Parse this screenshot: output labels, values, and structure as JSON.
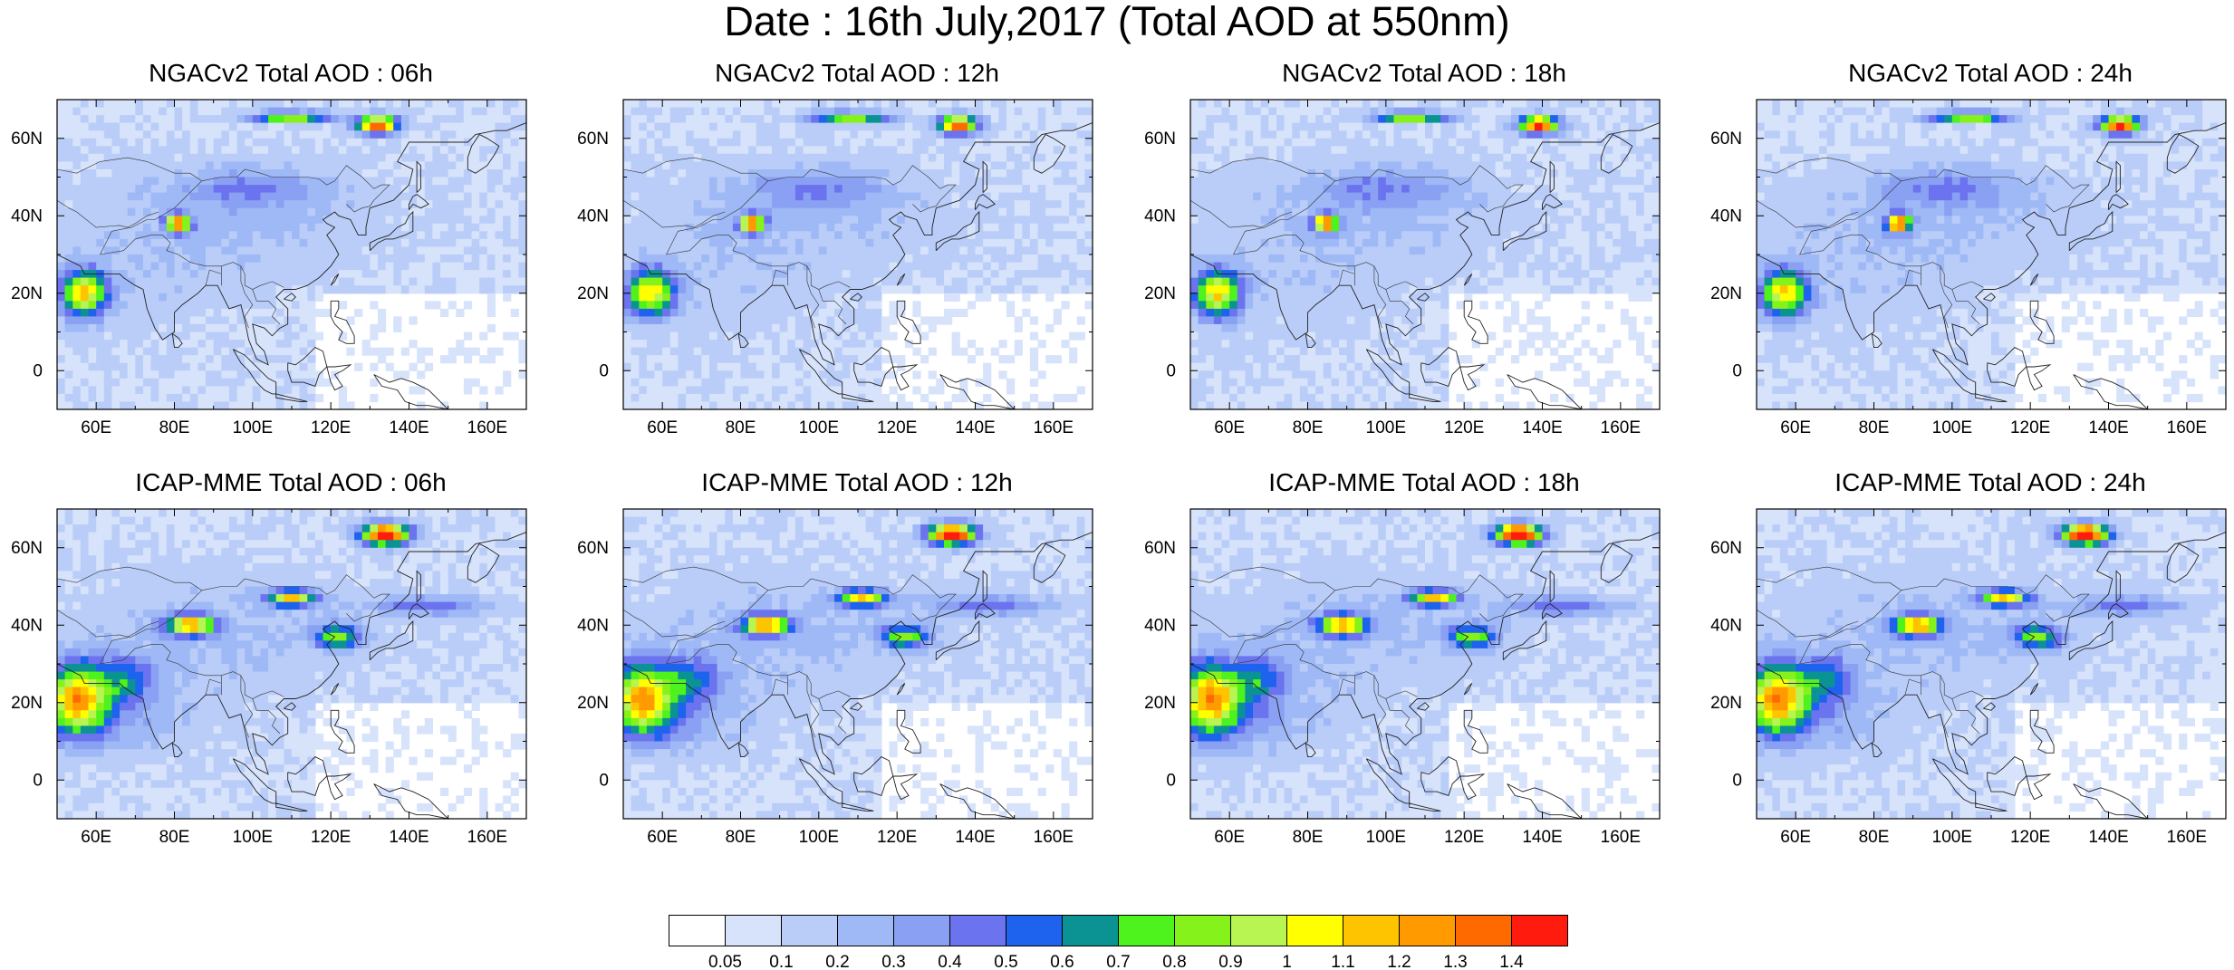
{
  "title": "Date : 16th July,2017 (Total AOD at 550nm)",
  "panels": [
    {
      "title": "NGACv2 Total AOD : 06h",
      "model": "NGACv2",
      "lead": "06h"
    },
    {
      "title": "NGACv2 Total AOD : 12h",
      "model": "NGACv2",
      "lead": "12h"
    },
    {
      "title": "NGACv2 Total AOD : 18h",
      "model": "NGACv2",
      "lead": "18h"
    },
    {
      "title": "NGACv2 Total AOD : 24h",
      "model": "NGACv2",
      "lead": "24h"
    },
    {
      "title": "ICAP-MME Total AOD : 06h",
      "model": "ICAP-MME",
      "lead": "06h"
    },
    {
      "title": "ICAP-MME Total AOD : 12h",
      "model": "ICAP-MME",
      "lead": "12h"
    },
    {
      "title": "ICAP-MME Total AOD : 18h",
      "model": "ICAP-MME",
      "lead": "18h"
    },
    {
      "title": "ICAP-MME Total AOD : 24h",
      "model": "ICAP-MME",
      "lead": "24h"
    }
  ],
  "x_ticks": [
    "60E",
    "80E",
    "100E",
    "120E",
    "140E",
    "160E"
  ],
  "y_ticks": [
    "60N",
    "40N",
    "20N",
    "0"
  ],
  "lon_range": [
    50,
    170
  ],
  "lat_range": [
    -10,
    70
  ],
  "colorbar": {
    "labels": [
      "0.05",
      "0.1",
      "0.2",
      "0.3",
      "0.4",
      "0.5",
      "0.6",
      "0.7",
      "0.8",
      "0.9",
      "1",
      "1.1",
      "1.2",
      "1.3",
      "1.4"
    ],
    "colors": [
      "#ffffff",
      "#d7e3fb",
      "#b9cdf8",
      "#9fb9f6",
      "#8aa0f2",
      "#6b74ee",
      "#1e63ee",
      "#0b9394",
      "#4ef21c",
      "#86f21c",
      "#b8f553",
      "#ffff00",
      "#ffc400",
      "#ff9b00",
      "#ff6a00",
      "#ff1c0f"
    ]
  }
}
